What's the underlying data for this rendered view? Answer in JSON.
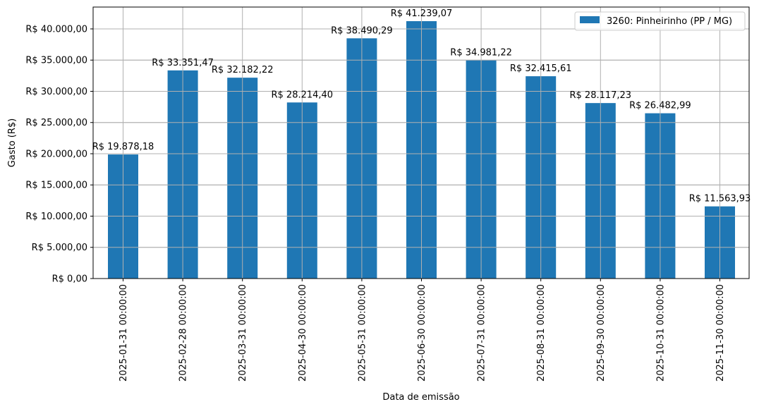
{
  "chart_data": {
    "type": "bar",
    "xlabel": "Data de emissão",
    "ylabel": "Gasto (R$)",
    "ylim": [
      0,
      43500
    ],
    "grid": true,
    "legend_placement": "top-right",
    "categories": [
      "2025-01-31 00:00:00",
      "2025-02-28 00:00:00",
      "2025-03-31 00:00:00",
      "2025-04-30 00:00:00",
      "2025-05-31 00:00:00",
      "2025-06-30 00:00:00",
      "2025-07-31 00:00:00",
      "2025-08-31 00:00:00",
      "2025-09-30 00:00:00",
      "2025-10-31 00:00:00",
      "2025-11-30 00:00:00"
    ],
    "series": [
      {
        "name": "3260: Pinheirinho (PP / MG)",
        "color": "#1f77b4",
        "values": [
          19878.18,
          33351.47,
          32182.22,
          28214.4,
          38490.29,
          41239.07,
          34981.22,
          32415.61,
          28117.23,
          26482.99,
          11563.93
        ],
        "value_labels": [
          "R$ 19.878,18",
          "R$ 33.351,47",
          "R$ 32.182,22",
          "R$ 28.214,40",
          "R$ 38.490,29",
          "R$ 41.239,07",
          "R$ 34.981,22",
          "R$ 32.415,61",
          "R$ 28.117,23",
          "R$ 26.482,99",
          "R$ 11.563,93"
        ]
      }
    ],
    "y_ticks": [
      {
        "value": 0,
        "label": "R$ 0,00"
      },
      {
        "value": 5000,
        "label": "R$ 5.000,00"
      },
      {
        "value": 10000,
        "label": "R$ 10.000,00"
      },
      {
        "value": 15000,
        "label": "R$ 15.000,00"
      },
      {
        "value": 20000,
        "label": "R$ 20.000,00"
      },
      {
        "value": 25000,
        "label": "R$ 25.000,00"
      },
      {
        "value": 30000,
        "label": "R$ 30.000,00"
      },
      {
        "value": 35000,
        "label": "R$ 35.000,00"
      },
      {
        "value": 40000,
        "label": "R$ 40.000,00"
      }
    ]
  }
}
